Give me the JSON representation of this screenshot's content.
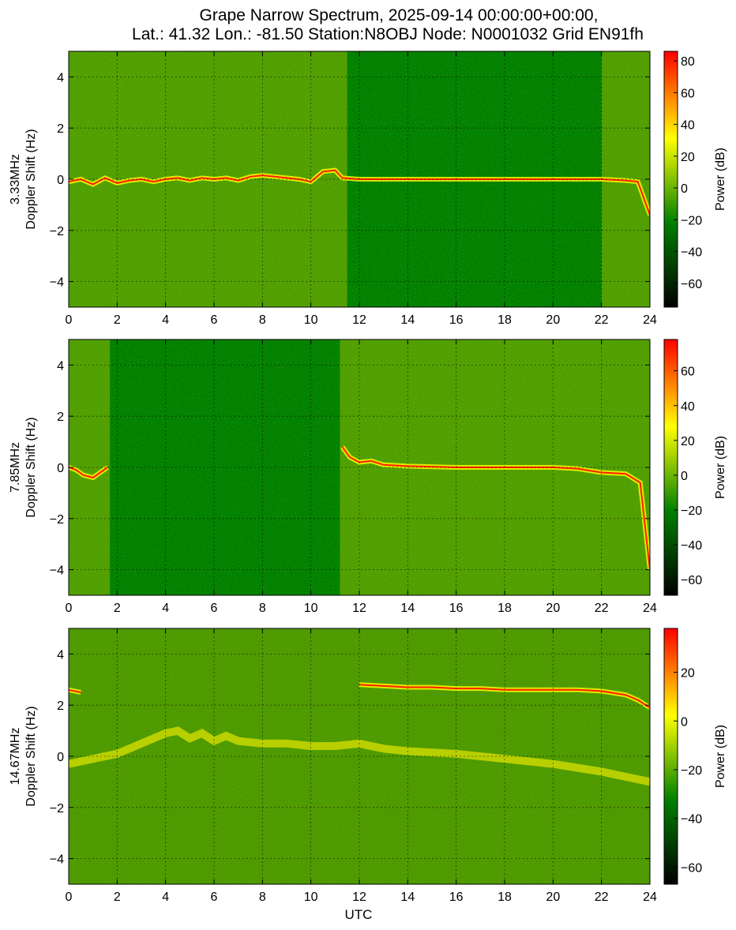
{
  "figure": {
    "title_line1": "Grape Narrow Spectrum, 2025-09-14 00:00:00+00:00,",
    "title_line2": "Lat.: 41.32 Lon.: -81.50 Station:N8OBJ Node: N0001032 Grid EN91fh",
    "xlabel": "UTC"
  },
  "colors": {
    "colormap": [
      "#000000",
      "#008000",
      "#ffff00",
      "#ff0000"
    ],
    "background_green": "#008000",
    "trace_orange": "#ff6a00",
    "trace_red": "#ff2000",
    "axes_frame": "#000000"
  },
  "chart_data": [
    {
      "type": "heatmap",
      "panel": "3.33MHz",
      "ylabel_line1": "3.33MHz",
      "ylabel_line2": "Doppler Shift (Hz)",
      "x_range": [
        0,
        24
      ],
      "y_range": [
        -5,
        5
      ],
      "x_ticks": [
        0,
        2,
        4,
        6,
        8,
        10,
        12,
        14,
        16,
        18,
        20,
        22,
        24
      ],
      "y_ticks": [
        4,
        2,
        0,
        -2,
        -4
      ],
      "colorbar_label": "Power (dB)",
      "colorbar_range": [
        -75,
        86
      ],
      "colorbar_ticks": [
        80,
        60,
        40,
        20,
        0,
        -20,
        -40,
        -60
      ],
      "grid": true,
      "carrier_hz": 0,
      "strong_signal_ranges": [
        [
          0,
          11.5
        ],
        [
          22,
          24
        ]
      ],
      "carrier_trace": [
        [
          0,
          -0.1
        ],
        [
          0.5,
          0.0
        ],
        [
          1,
          -0.2
        ],
        [
          1.5,
          0.05
        ],
        [
          2,
          -0.15
        ],
        [
          2.5,
          -0.05
        ],
        [
          3,
          0.0
        ],
        [
          3.5,
          -0.1
        ],
        [
          4,
          0.0
        ],
        [
          4.5,
          0.05
        ],
        [
          5,
          -0.05
        ],
        [
          5.5,
          0.05
        ],
        [
          6,
          0.0
        ],
        [
          6.5,
          0.05
        ],
        [
          7,
          -0.05
        ],
        [
          7.5,
          0.1
        ],
        [
          8,
          0.15
        ],
        [
          8.5,
          0.1
        ],
        [
          9,
          0.05
        ],
        [
          9.5,
          0.0
        ],
        [
          10,
          -0.1
        ],
        [
          10.5,
          0.3
        ],
        [
          11,
          0.35
        ],
        [
          11.3,
          0.05
        ],
        [
          12,
          0
        ],
        [
          14,
          0
        ],
        [
          16,
          0
        ],
        [
          18,
          0
        ],
        [
          20,
          0
        ],
        [
          22,
          0
        ],
        [
          23,
          -0.05
        ],
        [
          23.5,
          -0.1
        ],
        [
          24,
          -1.4
        ]
      ]
    },
    {
      "type": "heatmap",
      "panel": "7.85MHz",
      "ylabel_line1": "7.85MHz",
      "ylabel_line2": "Doppler Shift (Hz)",
      "x_range": [
        0,
        24
      ],
      "y_range": [
        -5,
        5
      ],
      "x_ticks": [
        0,
        2,
        4,
        6,
        8,
        10,
        12,
        14,
        16,
        18,
        20,
        22,
        24
      ],
      "y_ticks": [
        4,
        2,
        0,
        -2,
        -4
      ],
      "colorbar_label": "Power (dB)",
      "colorbar_range": [
        -69,
        78
      ],
      "colorbar_ticks": [
        60,
        40,
        20,
        0,
        -20,
        -40,
        -60
      ],
      "grid": true,
      "carrier_hz": 0,
      "strong_signal_ranges": [
        [
          0,
          1.7
        ],
        [
          11.2,
          24
        ]
      ],
      "carrier_trace": [
        [
          0,
          0.0
        ],
        [
          0.3,
          -0.1
        ],
        [
          0.6,
          -0.3
        ],
        [
          1.0,
          -0.4
        ],
        [
          1.3,
          -0.2
        ],
        [
          1.6,
          0.0
        ],
        [
          11.3,
          0.8
        ],
        [
          11.6,
          0.4
        ],
        [
          12,
          0.2
        ],
        [
          12.5,
          0.25
        ],
        [
          13,
          0.1
        ],
        [
          14,
          0.05
        ],
        [
          16,
          0.0
        ],
        [
          18,
          0.0
        ],
        [
          20,
          0.0
        ],
        [
          21,
          -0.05
        ],
        [
          22,
          -0.2
        ],
        [
          23,
          -0.25
        ],
        [
          23.6,
          -0.6
        ],
        [
          24,
          -4.0
        ]
      ]
    },
    {
      "type": "heatmap",
      "panel": "14.67MHz",
      "ylabel_line1": "14.67MHz",
      "ylabel_line2": "Doppler Shift (Hz)",
      "x_range": [
        0,
        24
      ],
      "y_range": [
        -5,
        5
      ],
      "x_ticks": [
        0,
        2,
        4,
        6,
        8,
        10,
        12,
        14,
        16,
        18,
        20,
        22,
        24
      ],
      "y_ticks": [
        4,
        2,
        0,
        -2,
        -4
      ],
      "colorbar_label": "Power (dB)",
      "colorbar_range": [
        -67,
        38
      ],
      "colorbar_ticks": [
        20,
        0,
        -20,
        -40,
        -60
      ],
      "grid": true,
      "carrier_hz": 0,
      "carrier_trace": [
        [
          0,
          2.6
        ],
        [
          0.5,
          2.5
        ],
        [
          12,
          2.8
        ],
        [
          13,
          2.75
        ],
        [
          14,
          2.7
        ],
        [
          15,
          2.7
        ],
        [
          16,
          2.65
        ],
        [
          17,
          2.65
        ],
        [
          18,
          2.6
        ],
        [
          19,
          2.6
        ],
        [
          20,
          2.6
        ],
        [
          21,
          2.6
        ],
        [
          22,
          2.55
        ],
        [
          23,
          2.4
        ],
        [
          23.5,
          2.2
        ],
        [
          24,
          1.9
        ]
      ],
      "diffuse_trace": [
        [
          0,
          -0.3
        ],
        [
          1,
          -0.1
        ],
        [
          2,
          0.1
        ],
        [
          3,
          0.5
        ],
        [
          4,
          0.9
        ],
        [
          4.5,
          1.0
        ],
        [
          5,
          0.7
        ],
        [
          5.5,
          0.9
        ],
        [
          6,
          0.6
        ],
        [
          6.5,
          0.8
        ],
        [
          7,
          0.6
        ],
        [
          8,
          0.5
        ],
        [
          9,
          0.5
        ],
        [
          10,
          0.4
        ],
        [
          11,
          0.4
        ],
        [
          12,
          0.5
        ],
        [
          13,
          0.3
        ],
        [
          14,
          0.2
        ],
        [
          16,
          0.1
        ],
        [
          18,
          -0.1
        ],
        [
          20,
          -0.3
        ],
        [
          22,
          -0.6
        ],
        [
          23,
          -0.8
        ],
        [
          24,
          -1.0
        ]
      ]
    }
  ]
}
